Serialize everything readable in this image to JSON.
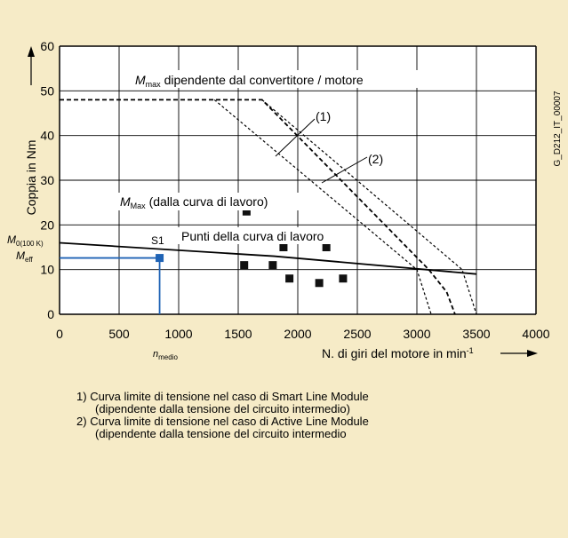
{
  "chart_data": {
    "type": "scatter",
    "x_ticks": [
      "0",
      "500",
      "1000",
      "1500",
      "2000",
      "2500",
      "3000",
      "3500",
      "4000"
    ],
    "y_ticks": [
      "0",
      "10",
      "20",
      "30",
      "40",
      "50",
      "60"
    ],
    "xlabel": "N. di giri del motore in min",
    "xlabel_sup": "-1",
    "ylabel": "Coppia in Nm",
    "xlim": [
      0,
      4000
    ],
    "ylim": [
      0,
      60
    ],
    "grid": true,
    "figure_code": "G_D212_IT_00007",
    "points": [
      {
        "x": 1570,
        "y": 23
      },
      {
        "x": 1880,
        "y": 15
      },
      {
        "x": 2240,
        "y": 15
      },
      {
        "x": 1550,
        "y": 11
      },
      {
        "x": 1790,
        "y": 11
      },
      {
        "x": 1930,
        "y": 8
      },
      {
        "x": 2180,
        "y": 7
      },
      {
        "x": 2380,
        "y": 8
      }
    ],
    "s1_point": {
      "x": 840,
      "y": 12.6
    },
    "m0_line": [
      [
        0,
        16
      ],
      [
        1800,
        13
      ],
      [
        3500,
        9
      ]
    ],
    "mmax_curve": [
      [
        0,
        48
      ],
      [
        1700,
        48
      ],
      [
        3100,
        10
      ],
      [
        3250,
        5
      ],
      [
        3320,
        0
      ]
    ],
    "limit_1": [
      [
        1300,
        48
      ],
      [
        3000,
        10
      ],
      [
        3120,
        0
      ]
    ],
    "limit_2": [
      [
        1700,
        48
      ],
      [
        3380,
        10
      ],
      [
        3500,
        0
      ]
    ],
    "labels": {
      "mmax_main": "M",
      "mmax_sub": "max",
      "mmax_text": " dipendente dal convertitore / motore",
      "curve1": "(1)",
      "curve2": "(2)",
      "mmax2_main": "M",
      "mmax2_sub": "Max",
      "mmax2_text": " (dalla curva di lavoro)",
      "work_points": "Punti della curva di lavoro",
      "s1": "S1",
      "m0_main": "M",
      "m0_sub": "0(100 K)",
      "meff_main": "M",
      "meff_sub": "eff",
      "nmedio_main": "n",
      "nmedio_sub": "medio"
    },
    "colors": {
      "blue": "#1f63b5",
      "background": "#f6ebc7",
      "grid": "#000000"
    }
  },
  "notes": [
    {
      "num": "1)",
      "line1": "Curva limite di tensione nel caso di Smart Line Module",
      "line2": "(dipendente dalla tensione del circuito intermedio)"
    },
    {
      "num": "2)",
      "line1": "Curva limite di tensione nel caso di Active Line Module",
      "line2": "(dipendente dalla tensione del circuito intermedio"
    }
  ]
}
